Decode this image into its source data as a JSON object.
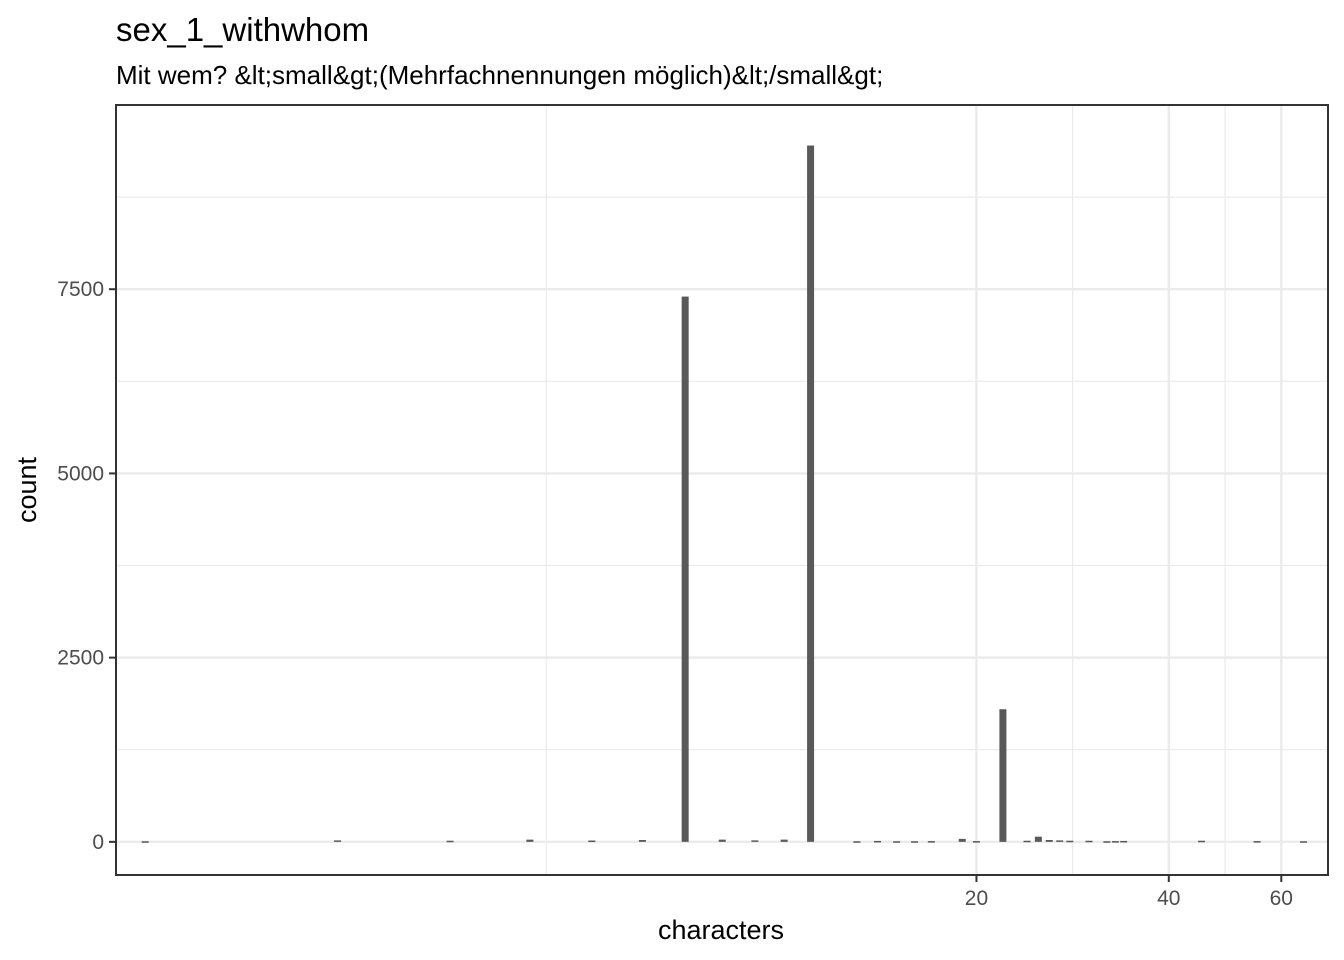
{
  "chart_data": {
    "type": "bar",
    "title": "sex_1_withwhom",
    "subtitle": "Mit wem? &lt;small&gt;(Mehrfachnennungen möglich)&lt;/small&gt;",
    "xlabel": "characters",
    "ylabel": "count",
    "x_scale": "log",
    "x_ticks": [
      20,
      40,
      60
    ],
    "x_tick_labels": [
      "20",
      "40",
      "60"
    ],
    "xlim": [
      0.9,
      71
    ],
    "y_ticks": [
      0,
      2500,
      5000,
      7500
    ],
    "y_tick_labels": [
      "0",
      "2500",
      "5000",
      "7500"
    ],
    "ylim": [
      -450,
      10000
    ],
    "grid": true,
    "bar_color": "#595959",
    "bars": [
      {
        "x": 1,
        "y": 8
      },
      {
        "x": 2,
        "y": 20
      },
      {
        "x": 3,
        "y": 15
      },
      {
        "x": 4,
        "y": 30
      },
      {
        "x": 5,
        "y": 18
      },
      {
        "x": 6,
        "y": 25
      },
      {
        "x": 7,
        "y": 7400
      },
      {
        "x": 8,
        "y": 30
      },
      {
        "x": 9,
        "y": 20
      },
      {
        "x": 10,
        "y": 30
      },
      {
        "x": 11,
        "y": 9450
      },
      {
        "x": 13,
        "y": 8
      },
      {
        "x": 14,
        "y": 12
      },
      {
        "x": 15,
        "y": 8
      },
      {
        "x": 16,
        "y": 8
      },
      {
        "x": 17,
        "y": 10
      },
      {
        "x": 19,
        "y": 40
      },
      {
        "x": 20,
        "y": 10
      },
      {
        "x": 22,
        "y": 1800
      },
      {
        "x": 24,
        "y": 15
      },
      {
        "x": 25,
        "y": 70
      },
      {
        "x": 26,
        "y": 25
      },
      {
        "x": 27,
        "y": 20
      },
      {
        "x": 28,
        "y": 15
      },
      {
        "x": 30,
        "y": 15
      },
      {
        "x": 32,
        "y": 8
      },
      {
        "x": 33,
        "y": 10
      },
      {
        "x": 34,
        "y": 12
      },
      {
        "x": 45,
        "y": 15
      },
      {
        "x": 55,
        "y": 10
      },
      {
        "x": 65,
        "y": 8
      }
    ]
  }
}
